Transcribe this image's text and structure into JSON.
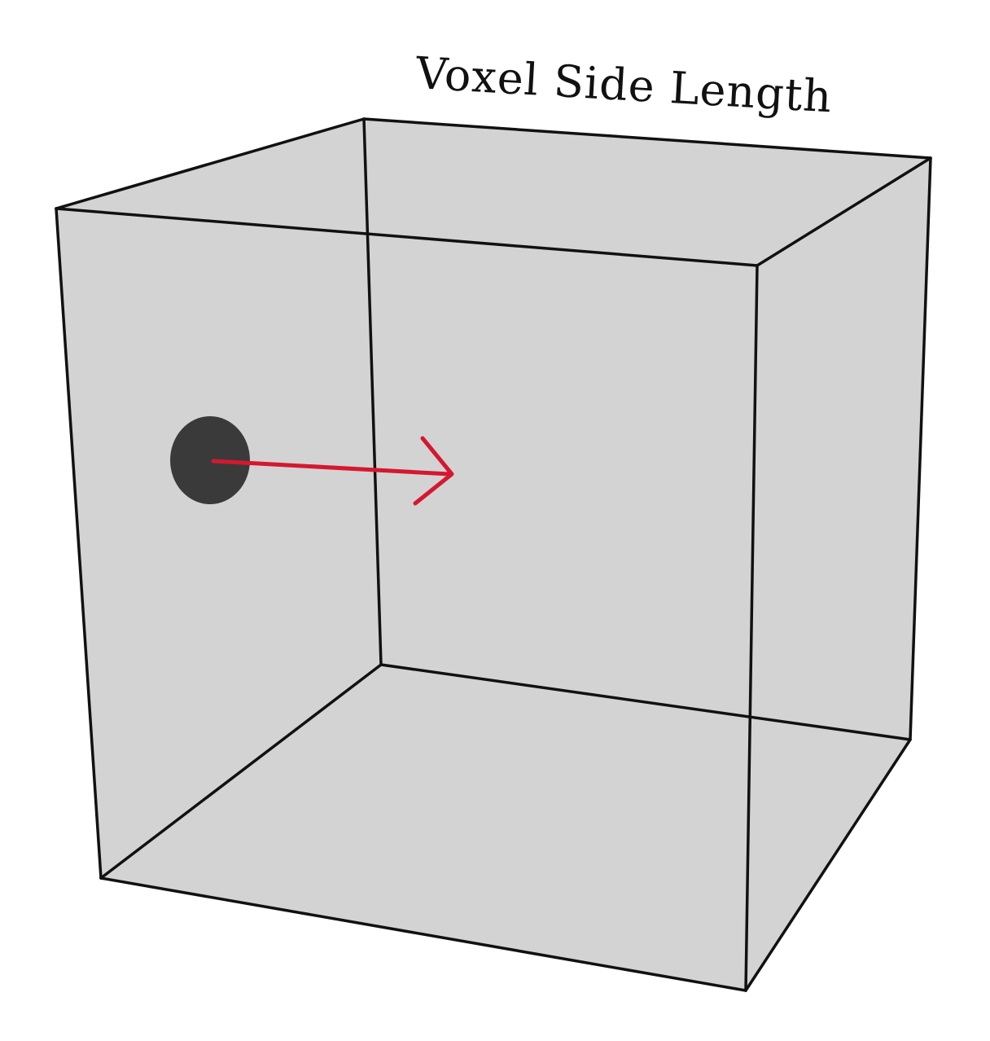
{
  "diagram": {
    "title": "Voxel Side Length",
    "shapes": {
      "cube": "voxel-cube",
      "particle": "particle-dot",
      "arrow": "direction-arrow"
    },
    "colors": {
      "background": "#ffffff",
      "cube_fill": "#d3d3d3",
      "cube_edge": "#111111",
      "particle": "#3a3a3a",
      "arrow": "#d41830",
      "title": "#111111"
    }
  }
}
